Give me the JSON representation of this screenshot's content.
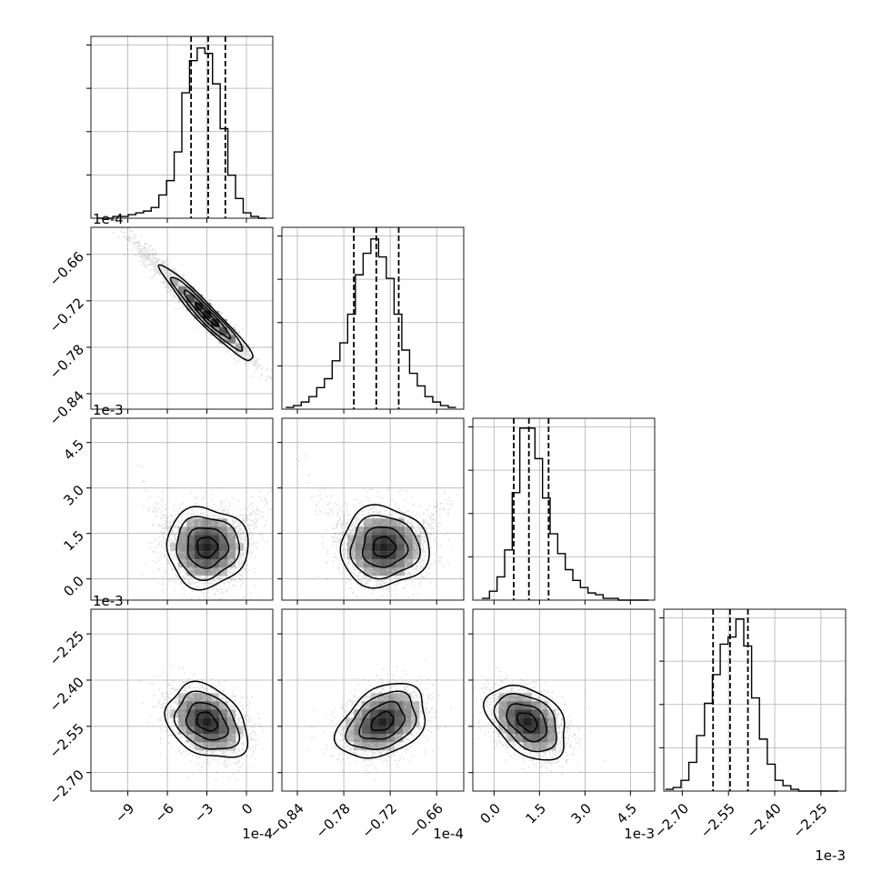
{
  "chart_data": {
    "type": "corner",
    "grid": true,
    "colors": {
      "line": "#000000",
      "grid": "#b0b0b0",
      "frame": "#000000"
    },
    "parameters": [
      {
        "offset_text": "1e-4",
        "range": [
          -11.8,
          2.0
        ],
        "ticks": [
          -9,
          -6,
          -3,
          0
        ],
        "tick_labels": [
          "−9",
          "−6",
          "−3",
          "0"
        ],
        "quantiles": [
          -4.2,
          -2.9,
          -1.6
        ],
        "hist_range": [
          -11.3,
          1.5
        ],
        "hist_counts": [
          0,
          0,
          1,
          1,
          2,
          3,
          4,
          6,
          13,
          21,
          37,
          70,
          88,
          95,
          92,
          75,
          50,
          24,
          11,
          3,
          1,
          0
        ],
        "hist_max": 100
      },
      {
        "offset_text": "1e-4",
        "range": [
          -0.86,
          -0.625
        ],
        "ticks": [
          -0.84,
          -0.78,
          -0.72,
          -0.66
        ],
        "tick_labels": [
          "−0.84",
          "−0.78",
          "−0.72",
          "−0.66"
        ],
        "quantiles": [
          -0.767,
          -0.738,
          -0.709
        ],
        "hist_range": [
          -0.855,
          -0.635
        ],
        "hist_counts": [
          1,
          2,
          4,
          7,
          12,
          17,
          27,
          37,
          53,
          75,
          87,
          95,
          85,
          73,
          53,
          33,
          20,
          13,
          7,
          4,
          2,
          1
        ],
        "hist_max": 100
      },
      {
        "offset_text": "1e-3",
        "range": [
          -0.7,
          5.3
        ],
        "ticks": [
          0.0,
          1.5,
          3.0,
          4.5
        ],
        "tick_labels": [
          "0.0",
          "1.5",
          "3.0",
          "4.5"
        ],
        "quantiles": [
          0.65,
          1.15,
          1.8
        ],
        "hist_range": [
          -0.4,
          5.1
        ],
        "hist_counts": [
          1,
          5,
          13,
          28,
          60,
          96,
          96,
          79,
          57,
          37,
          26,
          17,
          11,
          7,
          4,
          3,
          1,
          1,
          0,
          0,
          0,
          0
        ],
        "hist_max": 100
      },
      {
        "offset_text": "1e-3",
        "range": [
          -2.76,
          -2.17
        ],
        "ticks": [
          -2.7,
          -2.55,
          -2.4,
          -2.25
        ],
        "tick_labels": [
          "−2.70",
          "−2.55",
          "−2.40",
          "−2.25"
        ],
        "quantiles": [
          -2.6,
          -2.545,
          -2.487
        ],
        "hist_range": [
          -2.755,
          -2.195
        ],
        "hist_counts": [
          1,
          2,
          6,
          16,
          31,
          49,
          65,
          82,
          86,
          96,
          81,
          52,
          29,
          15,
          6,
          3,
          1,
          0,
          0,
          0,
          0,
          0
        ],
        "hist_max": 100
      }
    ],
    "pairs": [
      {
        "row": 1,
        "col": 0,
        "mean": [
          -3.0,
          -0.738
        ],
        "sd": [
          1.6,
          0.028
        ],
        "corr": -0.96,
        "n": 2600,
        "tail": true
      },
      {
        "row": 2,
        "col": 0,
        "mean": [
          -3.0,
          1.05
        ],
        "sd": [
          1.4,
          0.6
        ],
        "corr": 0.0,
        "n": 2600,
        "tail": false
      },
      {
        "row": 2,
        "col": 1,
        "mean": [
          -0.728,
          1.05
        ],
        "sd": [
          0.026,
          0.6
        ],
        "corr": 0.0,
        "n": 2600,
        "tail": false
      },
      {
        "row": 3,
        "col": 0,
        "mean": [
          -3.0,
          -2.535
        ],
        "sd": [
          1.4,
          0.055
        ],
        "corr": -0.3,
        "n": 2600,
        "tail": false
      },
      {
        "row": 3,
        "col": 1,
        "mean": [
          -0.73,
          -2.535
        ],
        "sd": [
          0.026,
          0.055
        ],
        "corr": 0.35,
        "n": 2600,
        "tail": false
      },
      {
        "row": 3,
        "col": 2,
        "mean": [
          1.1,
          -2.535
        ],
        "sd": [
          0.6,
          0.055
        ],
        "corr": -0.4,
        "n": 2600,
        "tail": false
      }
    ]
  }
}
